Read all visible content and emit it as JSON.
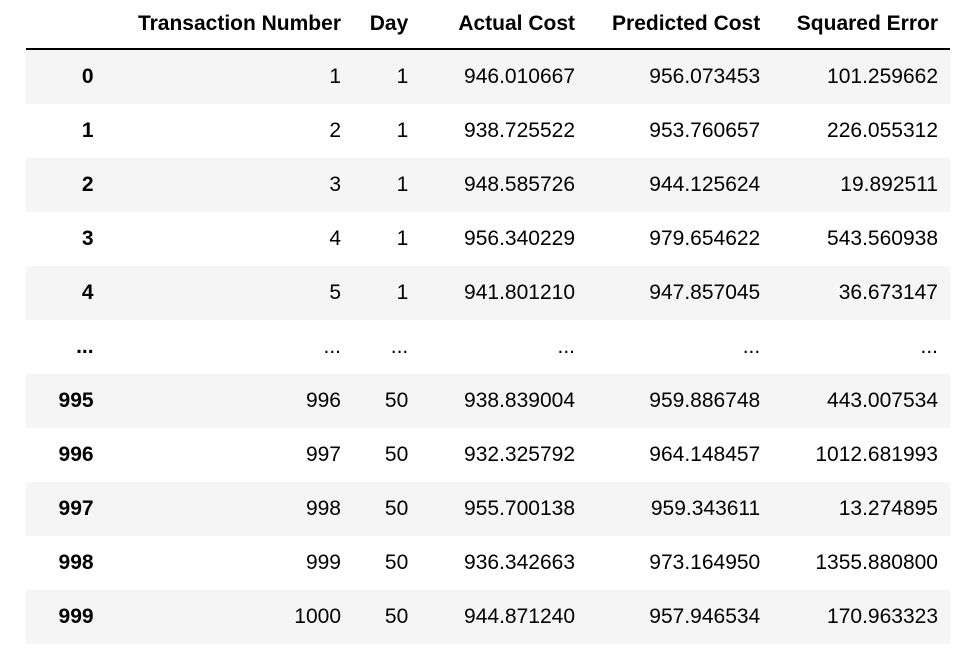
{
  "table": {
    "columns": [
      "",
      "Transaction Number",
      "Day",
      "Actual Cost",
      "Predicted Cost",
      "Squared Error"
    ],
    "rows": [
      {
        "index": "0",
        "cells": [
          "1",
          "1",
          "946.010667",
          "956.073453",
          "101.259662"
        ]
      },
      {
        "index": "1",
        "cells": [
          "2",
          "1",
          "938.725522",
          "953.760657",
          "226.055312"
        ]
      },
      {
        "index": "2",
        "cells": [
          "3",
          "1",
          "948.585726",
          "944.125624",
          "19.892511"
        ]
      },
      {
        "index": "3",
        "cells": [
          "4",
          "1",
          "956.340229",
          "979.654622",
          "543.560938"
        ]
      },
      {
        "index": "4",
        "cells": [
          "5",
          "1",
          "941.801210",
          "947.857045",
          "36.673147"
        ]
      },
      {
        "index": "...",
        "cells": [
          "...",
          "...",
          "...",
          "...",
          "..."
        ]
      },
      {
        "index": "995",
        "cells": [
          "996",
          "50",
          "938.839004",
          "959.886748",
          "443.007534"
        ]
      },
      {
        "index": "996",
        "cells": [
          "997",
          "50",
          "932.325792",
          "964.148457",
          "1012.681993"
        ]
      },
      {
        "index": "997",
        "cells": [
          "998",
          "50",
          "955.700138",
          "959.343611",
          "13.274895"
        ]
      },
      {
        "index": "998",
        "cells": [
          "999",
          "50",
          "936.342663",
          "973.164950",
          "1355.880800"
        ]
      },
      {
        "index": "999",
        "cells": [
          "1000",
          "50",
          "944.871240",
          "957.946534",
          "170.963323"
        ]
      }
    ]
  }
}
